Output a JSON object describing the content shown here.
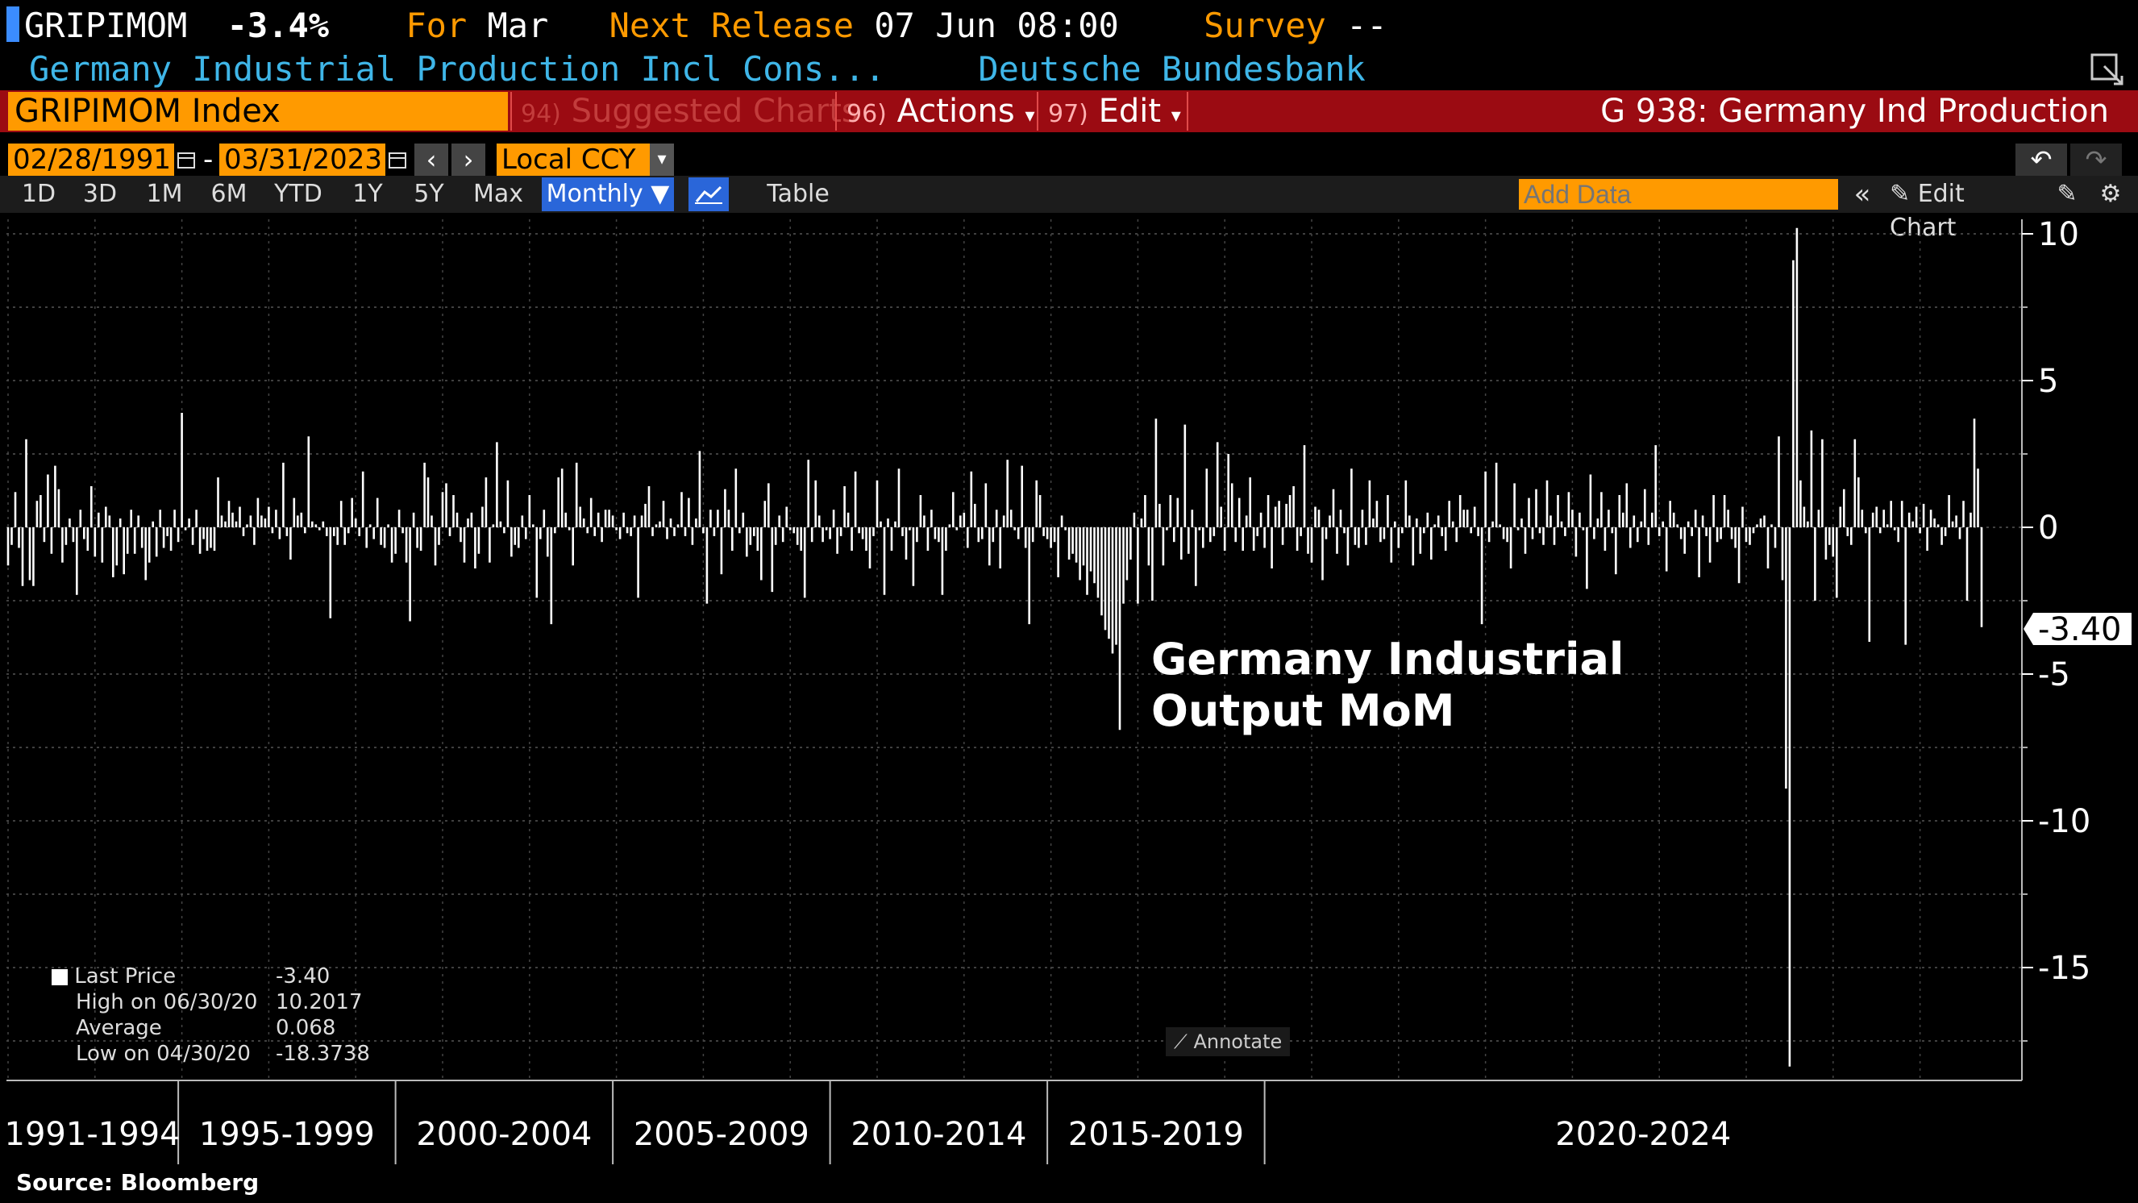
{
  "header": {
    "ticker": "GRIPIMOM",
    "change": "-3.4%",
    "for_label": "For",
    "for_value": "Mar",
    "next_release_label": "Next Release",
    "next_release_value": "07 Jun 08:00",
    "survey_label": "Survey",
    "survey_value": "--",
    "description": "Germany Industrial Production Incl Cons...",
    "source_org": "Deutsche Bundesbank"
  },
  "toolbar": {
    "index": "GRIPIMOM Index",
    "suggested_num": "94)",
    "suggested": "Suggested Charts",
    "actions_num": "96)",
    "actions": "Actions",
    "edit_num": "97)",
    "edit": "Edit",
    "title": "G 938: Germany Ind Production"
  },
  "dates": {
    "start": "02/28/1991",
    "dash": "-",
    "end": "03/31/2023",
    "currency": "Local CCY"
  },
  "periods": [
    "1D",
    "3D",
    "1M",
    "6M",
    "YTD",
    "1Y",
    "5Y",
    "Max"
  ],
  "controls": {
    "frequency": "Monthly ▼",
    "table": "Table",
    "add_data_placeholder": "Add Data",
    "edit_chart": "Edit Chart",
    "annotate": "Annotate"
  },
  "legend": {
    "last_label": "Last Price",
    "last_value": "-3.40",
    "high_label": "High on 06/30/20",
    "high_value": "10.2017",
    "avg_label": "Average",
    "avg_value": "0.068",
    "low_label": "Low on 04/30/20",
    "low_value": "-18.3738"
  },
  "source": "Source: Bloomberg",
  "colors": {
    "accent_orange": "#ff9a00",
    "bar_red": "#9b0b12",
    "header_blue": "#3fb6e8",
    "header_orange": "#ff9a00"
  },
  "chart_data": {
    "type": "bar",
    "title": "Germany Industrial Output MoM",
    "title_line1": "Germany Industrial",
    "title_line2": "Output MoM",
    "ylim": [
      -18.5,
      10.5
    ],
    "yticks": [
      10,
      5,
      0,
      -5,
      -10,
      -15
    ],
    "ytick_labels": [
      "10",
      "5",
      "0",
      "-5",
      "-10",
      "-15"
    ],
    "last_value_label": "-3.40",
    "start": "1991-02",
    "end": "2023-03",
    "period_labels": [
      "1991-1994",
      "1995-1999",
      "2000-2004",
      "2005-2009",
      "2010-2014",
      "2015-2019",
      "2020-2024"
    ],
    "values": [
      -1.3,
      -0.6,
      1.2,
      -0.7,
      -2.0,
      3.0,
      -1.8,
      -2.0,
      0.9,
      1.1,
      -0.5,
      1.8,
      -0.9,
      2.1,
      1.3,
      -1.2,
      -0.6,
      0.3,
      -0.5,
      -2.3,
      0.6,
      -0.4,
      -0.8,
      1.4,
      -1.0,
      0.5,
      -1.2,
      0.7,
      0.4,
      -1.7,
      -1.3,
      0.3,
      -1.6,
      -0.9,
      0.6,
      -0.9,
      0.4,
      -0.7,
      -1.8,
      -1.2,
      0.2,
      -1.0,
      0.6,
      -0.7,
      -0.3,
      -0.8,
      0.6,
      -0.5,
      3.9,
      -0.1,
      0.3,
      -0.6,
      0.6,
      -0.9,
      -0.4,
      -0.8,
      -0.7,
      -0.8,
      1.7,
      0.4,
      0.2,
      0.9,
      0.5,
      0.2,
      0.7,
      -0.3,
      0.1,
      0.4,
      -0.6,
      1.0,
      0.4,
      0.3,
      0.7,
      -0.2,
      0.6,
      -0.4,
      2.2,
      -0.3,
      -1.1,
      1.0,
      0.4,
      0.5,
      -0.2,
      3.1,
      0.2,
      0.1,
      -0.1,
      0.2,
      -0.3,
      -3.1,
      -0.3,
      -0.6,
      0.9,
      -0.6,
      -0.2,
      1.0,
      0.3,
      -0.3,
      1.9,
      -0.7,
      0.1,
      -0.4,
      1.0,
      -0.6,
      -0.7,
      0.1,
      -1.2,
      -0.9,
      0.6,
      -0.2,
      -1.2,
      -3.2,
      0.5,
      -0.7,
      -0.8,
      2.2,
      1.7,
      0.4,
      -1.3,
      -0.6,
      1.2,
      1.5,
      -0.3,
      1.1,
      0.5,
      -0.5,
      -1.2,
      0.3,
      0.5,
      -1.4,
      -0.9,
      0.7,
      1.7,
      -1.2,
      0.1,
      2.9,
      0.2,
      -0.2,
      1.6,
      -1.0,
      -0.6,
      -0.7,
      0.4,
      -0.4,
      1.1,
      0.1,
      -2.4,
      -0.4,
      0.6,
      -1.0,
      -3.3,
      -0.2,
      1.7,
      2.0,
      0.5,
      -0.1,
      -1.3,
      2.2,
      0.7,
      0.3,
      -0.2,
      1.0,
      -0.3,
      0.5,
      -0.5,
      0.6,
      0.6,
      0.4,
      -0.1,
      -0.4,
      0.5,
      -0.2,
      -0.3,
      0.4,
      -2.4,
      0.4,
      0.8,
      1.4,
      -0.3,
      0.1,
      0.2,
      0.9,
      -0.4,
      0.3,
      -0.3,
      0.1,
      1.2,
      -0.3,
      1.0,
      -0.6,
      0.3,
      2.6,
      -0.2,
      -2.6,
      0.6,
      -0.3,
      0.6,
      -1.6,
      1.3,
      0.6,
      -0.8,
      2.0,
      -0.2,
      0.5,
      -1.0,
      -0.6,
      -0.3,
      -0.8,
      -1.8,
      0.9,
      1.5,
      -2.2,
      -0.6,
      0.4,
      -0.5,
      0.7,
      -0.1,
      -0.2,
      -0.6,
      -0.8,
      -2.4,
      2.3,
      -0.5,
      1.6,
      0.4,
      -0.5,
      -0.1,
      -0.4,
      0.6,
      -0.9,
      -0.3,
      1.4,
      0.5,
      -0.8,
      1.9,
      -0.2,
      -0.4,
      -0.8,
      -1.4,
      -0.3,
      1.6,
      0.2,
      -2.3,
      0.3,
      -0.8,
      0.2,
      2.0,
      -0.3,
      -1.1,
      -0.1,
      -2.0,
      -0.5,
      1.1,
      0.4,
      -0.8,
      0.6,
      -0.4,
      -0.5,
      -2.3,
      -0.8,
      0.1,
      1.2,
      -0.1,
      0.4,
      0.5,
      -0.7,
      1.9,
      0.8,
      -0.5,
      -0.4,
      1.5,
      -1.3,
      -0.5,
      0.6,
      -1.4,
      0.4,
      2.3,
      0.6,
      -0.1,
      -0.4,
      2.1,
      -0.7,
      -3.3,
      -0.5,
      1.6,
      1.1,
      -0.3,
      -0.4,
      -0.7,
      -0.5,
      -1.7,
      0.4,
      -0.1,
      -1.1,
      -0.9,
      -1.2,
      -1.8,
      -1.3,
      -2.3,
      -1.5,
      -1.9,
      -2.4,
      -3.0,
      -3.5,
      -3.8,
      -4.3,
      -4.0,
      -6.9,
      -2.6,
      -1.8,
      -1.1,
      0.5,
      -2.6,
      0.3,
      1.1,
      -1.3,
      -2.5,
      3.7,
      0.8,
      -1.3,
      -0.1,
      1.1,
      -0.5,
      1.0,
      -1.1,
      3.5,
      -0.9,
      0.6,
      -2.0,
      -0.1,
      -0.7,
      2.0,
      -0.5,
      -0.3,
      2.9,
      0.7,
      -0.8,
      2.5,
      1.5,
      -0.5,
      1.0,
      -0.8,
      0.4,
      1.7,
      -0.8,
      -0.3,
      0.5,
      -0.7,
      1.1,
      -1.4,
      0.7,
      0.9,
      -0.6,
      0.8,
      1.1,
      1.4,
      -0.8,
      -0.3,
      2.8,
      -0.9,
      -1.2,
      0.7,
      0.6,
      -1.8,
      -0.4,
      0.4,
      1.3,
      -0.9,
      0.6,
      -0.2,
      -1.3,
      2.0,
      -0.6,
      -0.7,
      0.6,
      -0.6,
      1.6,
      0.3,
      0.9,
      -0.5,
      -0.4,
      1.1,
      -1.2,
      0.2,
      -0.7,
      -0.2,
      1.6,
      0.4,
      -1.3,
      0.3,
      -0.9,
      -0.2,
      0.5,
      -1.1,
      0.1,
      0.4,
      -0.3,
      -0.8,
      0.9,
      0.2,
      -0.5,
      1.1,
      0.6,
      0.6,
      -0.2,
      0.7,
      -0.3,
      -3.3,
      1.9,
      -0.5,
      0.2,
      2.2,
      0.1,
      -0.4,
      -0.5,
      -1.4,
      1.5,
      -0.1,
      0.3,
      -0.9,
      1.0,
      -0.4,
      1.3,
      -0.2,
      -0.6,
      1.6,
      0.4,
      -0.6,
      1.1,
      0.2,
      -0.3,
      1.2,
      0.6,
      -1.0,
      0.5,
      -0.1,
      -2.1,
      1.8,
      -0.4,
      0.3,
      1.2,
      -0.8,
      0.6,
      -0.2,
      -1.6,
      1.1,
      0.5,
      1.5,
      -0.7,
      0.4,
      -0.5,
      0.2,
      1.3,
      -0.6,
      0.5,
      2.8,
      -0.3,
      0.2,
      -1.5,
      0.9,
      0.5,
      0.1,
      -0.4,
      -0.9,
      0.2,
      -0.3,
      0.6,
      -1.7,
      0.4,
      -0.3,
      -1.2,
      1.1,
      -0.5,
      -0.4,
      1.1,
      0.6,
      -0.4,
      -0.7,
      -1.9,
      0.7,
      -0.5,
      -0.6,
      -0.2,
      0.1,
      0.3,
      0.4,
      -1.4,
      0.1,
      -0.7,
      3.1,
      -1.8,
      -8.9,
      -18.37,
      9.1,
      10.2,
      1.6,
      0.7,
      0.2,
      3.3,
      -2.5,
      0.6,
      3.0,
      -1.1,
      -0.6,
      -1.0,
      -2.4,
      0.7,
      1.3,
      -0.3,
      -0.6,
      3.0,
      1.7,
      0.6,
      -0.2,
      -3.9,
      0.5,
      0.7,
      -0.2,
      0.6,
      0.1,
      0.9,
      -0.1,
      -0.5,
      0.9,
      -4.0,
      0.5,
      0.2,
      0.7,
      -0.2,
      0.8,
      -0.8,
      0.6,
      0.3,
      0.1,
      -0.6,
      -0.3,
      1.1,
      0.2,
      0.4,
      -0.4,
      0.9,
      -2.5,
      0.5,
      3.7,
      2.0,
      -3.4
    ]
  }
}
